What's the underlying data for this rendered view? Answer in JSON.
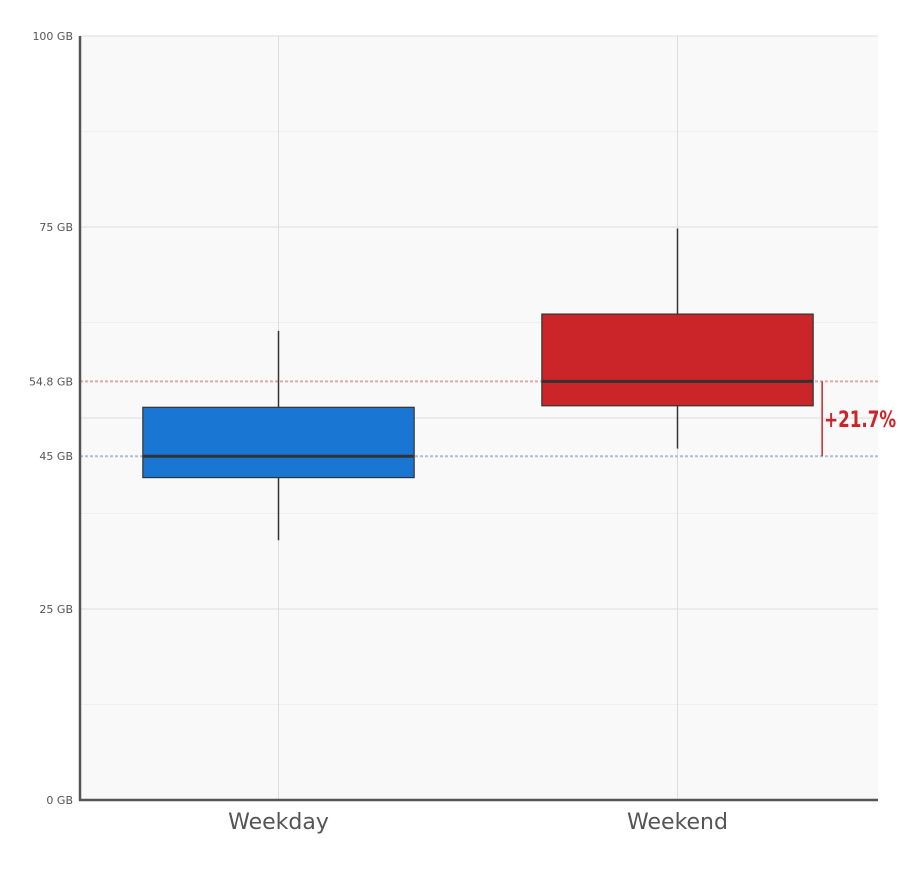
{
  "chart_data": {
    "type": "box",
    "categories": [
      "Weekday",
      "Weekend"
    ],
    "boxes": [
      {
        "category": "Weekday",
        "whisker_low": 34,
        "q1": 42.2,
        "median": 45,
        "q3": 51.4,
        "whisker_high": 61.4,
        "color": "#1976D2"
      },
      {
        "category": "Weekend",
        "whisker_low": 46,
        "q1": 51.6,
        "median": 54.8,
        "q3": 63.6,
        "whisker_high": 74.8,
        "color": "#CC2529"
      }
    ],
    "reference_lines": [
      {
        "value": 54.8,
        "label": "54.8 GB",
        "color": "#E2A7A7"
      },
      {
        "value": 45,
        "label": "45 GB",
        "color": "#A9BFD6"
      }
    ],
    "difference_annotation": {
      "text": "+21.7%",
      "from": 45,
      "to": 54.8,
      "color": "#CC2529"
    },
    "y_ticks": [
      {
        "value": 0,
        "label": "0 GB"
      },
      {
        "value": 25,
        "label": "25 GB"
      },
      {
        "value": 45,
        "label": "45 GB"
      },
      {
        "value": 54.8,
        "label": "54.8 GB"
      },
      {
        "value": 75,
        "label": "75 GB"
      },
      {
        "value": 100,
        "label": "100 GB"
      }
    ],
    "ylim": [
      0,
      100
    ],
    "grid": true,
    "title": "",
    "xlabel": "",
    "ylabel": ""
  }
}
